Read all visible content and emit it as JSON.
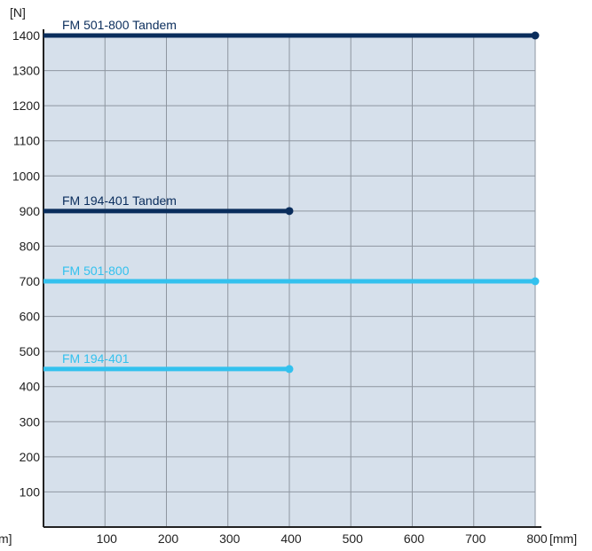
{
  "chart_data": {
    "type": "line",
    "title": "",
    "ylabel": "[N]",
    "xlabel": "[mm]",
    "xlabel_left": "m]",
    "xlim": [
      0,
      800
    ],
    "ylim": [
      0,
      1400
    ],
    "x_ticks": [
      100,
      200,
      300,
      400,
      500,
      600,
      700,
      800
    ],
    "y_ticks": [
      100,
      200,
      300,
      400,
      500,
      600,
      700,
      800,
      900,
      1000,
      1100,
      1200,
      1300,
      1400
    ],
    "grid": true,
    "legend": "inline labels above lines",
    "series": [
      {
        "name": "FM 501-800 Tandem",
        "x": [
          0,
          800
        ],
        "y": [
          1400,
          1400
        ],
        "color": "#0a2d5c"
      },
      {
        "name": "FM 194-401 Tandem",
        "x": [
          0,
          400
        ],
        "y": [
          900,
          900
        ],
        "color": "#0a2d5c"
      },
      {
        "name": "FM 501-800",
        "x": [
          0,
          800
        ],
        "y": [
          700,
          700
        ],
        "color": "#33c1ee"
      },
      {
        "name": "FM 194-401",
        "x": [
          0,
          400
        ],
        "y": [
          450,
          450
        ],
        "color": "#33c1ee"
      }
    ],
    "colors": {
      "plot_background": "#d6e0eb",
      "grid": "#8e96a0",
      "axis": "#222222"
    }
  }
}
